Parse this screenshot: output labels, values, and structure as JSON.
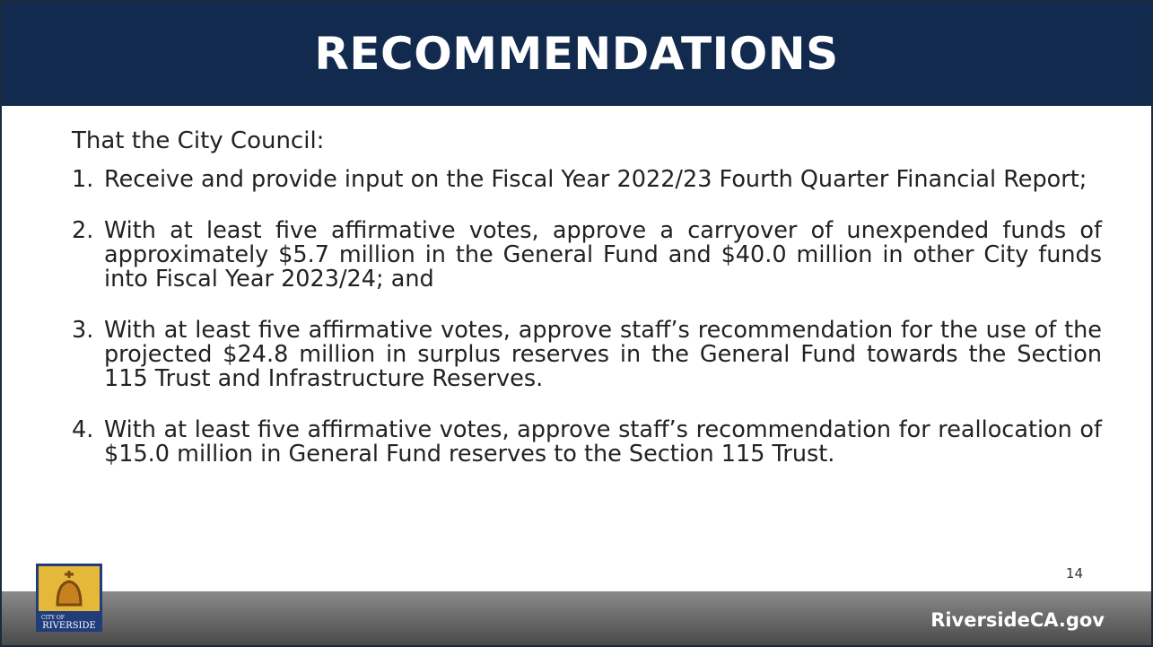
{
  "header": {
    "title": "RECOMMENDATIONS"
  },
  "body": {
    "intro": "That the City Council:",
    "items": [
      {
        "number": "1.",
        "text": "Receive and provide input on the Fiscal Year 2022/23 Fourth Quarter Financial Report;"
      },
      {
        "number": "2.",
        "text": "With at least five affirmative votes, approve a carryover of unexpended funds of approximately $5.7 million in the General Fund and $40.0 million in other City funds into Fiscal Year 2023/24; and"
      },
      {
        "number": "3.",
        "text": "With at least five affirmative votes, approve staff’s recommendation for the use of the projected $24.8 million in surplus reserves in the General Fund towards the Section 115 Trust and Infrastructure Reserves."
      },
      {
        "number": "4.",
        "text": "With at least five affirmative votes, approve staff’s recommendation for reallocation of $15.0 million in General Fund reserves to the Section 115 Trust."
      }
    ]
  },
  "footer": {
    "page_number": "14",
    "website": "RiversideCA.gov",
    "logo": {
      "line1": "CITY OF",
      "line2": "RIVERSIDE"
    }
  }
}
